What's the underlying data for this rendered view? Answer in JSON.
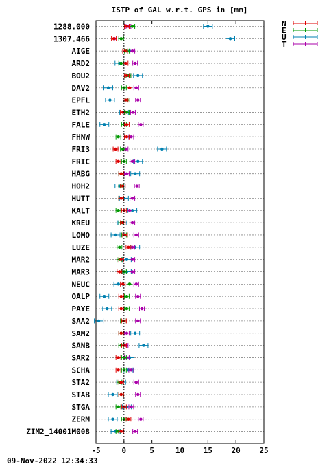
{
  "timestamp": "09-Nov-2022 12:34:33",
  "colors": {
    "N": "#dd0000",
    "E": "#009900",
    "U": "#0080b0",
    "T": "#aa00aa"
  },
  "chart_data": {
    "type": "scatter",
    "title": "ISTP of GAL w.r.t. GPS in [mm]",
    "xlim": [
      -5,
      25
    ],
    "xticks": [
      -5,
      0,
      5,
      10,
      15,
      20,
      25
    ],
    "reference_line": 0,
    "grid": "horizontal dotted",
    "legend_position": "top-right",
    "series": [
      {
        "name": "N",
        "color": "#dd0000"
      },
      {
        "name": "E",
        "color": "#009900"
      },
      {
        "name": "U",
        "color": "#0080b0"
      },
      {
        "name": "T",
        "color": "#aa00aa"
      }
    ],
    "stations": [
      {
        "name": "1288.000",
        "N": 0.5,
        "E": 1.5,
        "U": 15.0,
        "T": 0.8
      },
      {
        "name": "1307.466",
        "N": -1.8,
        "E": -0.5,
        "U": 19.0,
        "T": -1.7
      },
      {
        "name": "AIGE",
        "N": 0.2,
        "E": 0.5,
        "U": 1.0,
        "T": 1.5
      },
      {
        "name": "ARD2",
        "N": 0.3,
        "E": -0.5,
        "U": -0.8,
        "T": 2.0
      },
      {
        "name": "BOU2",
        "N": 0.5,
        "E": 0.8,
        "U": 2.5,
        "T": 0.8
      },
      {
        "name": "DAV2",
        "N": 1.0,
        "E": 0.0,
        "U": -2.8,
        "T": 2.2
      },
      {
        "name": "EPFL",
        "N": 0.3,
        "E": 0.6,
        "U": -2.5,
        "T": 2.5
      },
      {
        "name": "ETH2",
        "N": -0.2,
        "E": 0.5,
        "U": 0.0,
        "T": 1.6
      },
      {
        "name": "FALE",
        "N": 0.5,
        "E": 0.0,
        "U": -3.5,
        "T": 3.0
      },
      {
        "name": "FHNW",
        "N": 0.5,
        "E": -1.0,
        "U": 1.0,
        "T": 1.3
      },
      {
        "name": "FRI3",
        "N": -1.5,
        "E": -0.2,
        "U": 6.8,
        "T": 0.3
      },
      {
        "name": "FRIC",
        "N": -1.0,
        "E": 0.0,
        "U": 2.5,
        "T": 1.5
      },
      {
        "name": "HABG",
        "N": -0.5,
        "E": -0.5,
        "U": 2.0,
        "T": 0.5
      },
      {
        "name": "HOH2",
        "N": -0.2,
        "E": -0.5,
        "U": -0.8,
        "T": 2.3
      },
      {
        "name": "HUTT",
        "N": -0.5,
        "E": -0.5,
        "U": 0.0,
        "T": 1.5
      },
      {
        "name": "KALT",
        "N": 0.0,
        "E": -1.0,
        "U": 1.5,
        "T": 1.0
      },
      {
        "name": "KREU",
        "N": -0.2,
        "E": -0.5,
        "U": -0.3,
        "T": 1.5
      },
      {
        "name": "LOMO",
        "N": 0.2,
        "E": 0.0,
        "U": -1.5,
        "T": 2.2
      },
      {
        "name": "LUZE",
        "N": 0.8,
        "E": -0.8,
        "U": 2.0,
        "T": 1.5
      },
      {
        "name": "MAR2",
        "N": -0.5,
        "E": -0.8,
        "U": 0.5,
        "T": 1.5
      },
      {
        "name": "MAR3",
        "N": -0.8,
        "E": 0.0,
        "U": 0.5,
        "T": 1.5
      },
      {
        "name": "NEUC",
        "N": -0.2,
        "E": 1.0,
        "U": -1.0,
        "T": 2.2
      },
      {
        "name": "OALP",
        "N": -0.5,
        "E": 0.5,
        "U": -3.5,
        "T": 2.5
      },
      {
        "name": "PAYE",
        "N": -0.5,
        "E": 0.5,
        "U": -3.0,
        "T": 3.2
      },
      {
        "name": "SAA2",
        "N": 0.0,
        "E": -0.2,
        "U": -4.5,
        "T": 2.5
      },
      {
        "name": "SAM2",
        "N": -0.5,
        "E": -0.5,
        "U": 2.0,
        "T": 0.5
      },
      {
        "name": "SANB",
        "N": 0.0,
        "E": -0.5,
        "U": 3.5,
        "T": 0.3
      },
      {
        "name": "SAR2",
        "N": -1.0,
        "E": 0.0,
        "U": 1.0,
        "T": 0.5
      },
      {
        "name": "SCHA",
        "N": -1.0,
        "E": 0.0,
        "U": 0.8,
        "T": 1.3
      },
      {
        "name": "STA2",
        "N": -0.5,
        "E": -0.8,
        "U": -0.5,
        "T": 2.2
      },
      {
        "name": "STAB",
        "N": -0.5,
        "E": -0.5,
        "U": -2.0,
        "T": 2.5
      },
      {
        "name": "STGA",
        "N": 0.0,
        "E": -1.0,
        "U": 0.5,
        "T": 1.3
      },
      {
        "name": "ZERM",
        "N": 0.8,
        "E": 0.0,
        "U": -2.0,
        "T": 3.0
      },
      {
        "name": "ZIM2_14001M008",
        "N": -0.5,
        "E": -1.0,
        "U": -1.5,
        "T": 2.0
      }
    ]
  }
}
